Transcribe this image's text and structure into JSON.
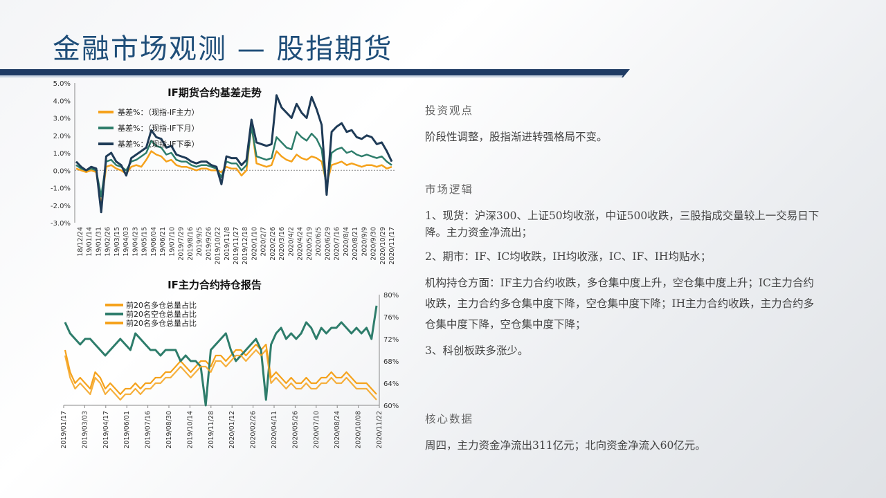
{
  "page": {
    "title": "金融市场观测 — 股指期货"
  },
  "text_panel": {
    "section1_head": "投资观点",
    "section1_body": "阶段性调整，股指渐进转强格局不变。",
    "section2_head": "市场逻辑",
    "section2_p1": "1、现货：沪深300、上证50均收涨，中证500收跌，三股指成交量较上一交易日下降。主力资金净流出；",
    "section2_p2": "2、期市：IF、IC均收跌，IH均收涨，IC、IF、IH均贴水；",
    "section2_p3": "机构持仓方面：IF主力合约收跌，多仓集中度上升，空仓集中度上升；IC主力合约收跌，主力合约多仓集中度下降，空仓集中度下降；IH主力合约收跌，主力合约多仓集中度下降，空仓集中度下降；",
    "section2_p4": "3、科创板跌多涨少。",
    "section3_head": "核心数据",
    "section3_body": "周四，主力资金净流出311亿元；北向资金净流入60亿元。"
  },
  "colors": {
    "orange": "#f5a21c",
    "green": "#2e7d6b",
    "navy": "#1f3b57",
    "title_blue": "#1f4e79"
  },
  "chart_data": [
    {
      "type": "line",
      "title": "IF期货合约基差走势",
      "y_unit": "%",
      "ylim": [
        -3.0,
        5.0
      ],
      "y_ticks": [
        "5.0%",
        "4.0%",
        "3.0%",
        "2.0%",
        "1.0%",
        "0.0%",
        "-1.0%",
        "-2.0%",
        "-3.0%"
      ],
      "x_tick_labels": [
        "18/12/24",
        "19/01/14",
        "19/01/31",
        "19/02/26",
        "19/03/15",
        "19/04/03",
        "19/04/23",
        "19/05/15",
        "19/06/04",
        "19/06/21",
        "19/07/10",
        "2019/7/29",
        "2019/8/16",
        "2019/9/5",
        "2019/9/26",
        "2019/10/22",
        "2019/11/8",
        "2019/11/27",
        "2019/12/18",
        "2020/1/10",
        "2020/2/7",
        "2020/2/26",
        "2020/3/16",
        "2020/4/2",
        "2020/4/24",
        "2020/5/19",
        "2020/6/5",
        "2020/6/29",
        "2020/7/16",
        "2020/8/4",
        "2020/8/21",
        "2020/9/9",
        "2020/9/30",
        "2020/10/29",
        "2020/11/17"
      ],
      "legend_placement": "top-left",
      "series": [
        {
          "name": "基差%：（现指-IF主力）",
          "color_key": "orange",
          "values": [
            0.1,
            0.0,
            -0.1,
            0.0,
            -0.1,
            -2.0,
            0.2,
            0.3,
            0.1,
            0.0,
            -0.2,
            0.2,
            0.3,
            0.2,
            0.6,
            1.1,
            0.9,
            0.8,
            0.5,
            0.6,
            0.3,
            0.2,
            0.2,
            0.1,
            0.0,
            0.1,
            0.1,
            0.0,
            0.0,
            -0.1,
            0.2,
            0.1,
            0.1,
            -0.3,
            0.0,
            2.6,
            0.4,
            0.3,
            0.2,
            0.3,
            1.1,
            0.8,
            0.6,
            0.5,
            0.9,
            0.7,
            0.6,
            0.8,
            0.7,
            0.5,
            -0.8,
            0.3,
            0.4,
            0.5,
            0.3,
            0.4,
            0.3,
            0.2,
            0.3,
            0.3,
            0.2,
            0.3,
            0.1,
            0.2
          ]
        },
        {
          "name": "基差%：（现指-IF下月）",
          "color_key": "green",
          "values": [
            0.3,
            0.1,
            0.0,
            0.1,
            0.0,
            -1.5,
            0.5,
            0.6,
            0.3,
            0.2,
            0.0,
            0.5,
            0.6,
            0.8,
            1.0,
            1.7,
            1.4,
            1.3,
            0.9,
            1.0,
            0.6,
            0.5,
            0.5,
            0.3,
            0.2,
            0.3,
            0.3,
            0.2,
            0.1,
            -0.4,
            0.5,
            0.4,
            0.4,
            0.0,
            0.3,
            2.5,
            0.8,
            0.7,
            0.6,
            0.7,
            1.9,
            1.6,
            1.3,
            1.2,
            2.2,
            1.9,
            1.7,
            2.1,
            1.8,
            1.2,
            -1.1,
            1.0,
            1.2,
            1.3,
            1.0,
            1.1,
            0.9,
            0.8,
            0.9,
            0.8,
            0.7,
            0.8,
            0.5,
            0.3
          ]
        },
        {
          "name": "基差%：（现指-IF下季）",
          "color_key": "navy",
          "values": [
            0.5,
            0.2,
            0.0,
            0.2,
            0.1,
            -2.4,
            0.8,
            1.0,
            0.5,
            0.3,
            -0.3,
            0.7,
            0.9,
            1.1,
            1.3,
            2.3,
            1.9,
            1.8,
            1.3,
            1.4,
            0.9,
            0.8,
            0.7,
            0.5,
            0.4,
            0.5,
            0.5,
            0.3,
            0.2,
            -0.8,
            0.8,
            0.7,
            0.7,
            0.3,
            0.6,
            2.9,
            1.6,
            1.5,
            1.4,
            1.5,
            4.3,
            3.6,
            3.3,
            3.0,
            3.8,
            3.3,
            3.0,
            4.2,
            3.5,
            2.6,
            -1.4,
            2.2,
            2.5,
            2.7,
            2.2,
            2.3,
            1.9,
            1.8,
            2.0,
            1.9,
            1.5,
            1.6,
            1.1,
            0.5
          ]
        }
      ]
    },
    {
      "type": "line",
      "title": "IF主力合约持仓报告",
      "y_unit": "%",
      "ylim": [
        60,
        80
      ],
      "y_ticks_right": [
        "80%",
        "76%",
        "72%",
        "68%",
        "64%",
        "60%"
      ],
      "x_tick_labels": [
        "2019/01/17",
        "2019/03/03",
        "2019/04/17",
        "2019/06/01",
        "2019/07/16",
        "2019/08/30",
        "2019/10/14",
        "2019/11/28",
        "2020/01/12",
        "2020/02/26",
        "2020/04/11",
        "2020/05/26",
        "2020/07/10",
        "2020/08/24",
        "2020/10/08",
        "2020/11/22"
      ],
      "legend_placement": "top-left",
      "series": [
        {
          "name": "前20名多仓总量占比",
          "color_key": "orange",
          "values": [
            70,
            66,
            64,
            65,
            64,
            63,
            66,
            65,
            63,
            64,
            63,
            62,
            63,
            63,
            64,
            63,
            64,
            64,
            65,
            65,
            66,
            66,
            67,
            68,
            67,
            66,
            67,
            68,
            68,
            67,
            69,
            69,
            68,
            69,
            70,
            70,
            69,
            70,
            71,
            70,
            71,
            65,
            66,
            65,
            64,
            65,
            64,
            64,
            65,
            64,
            64,
            65,
            65,
            66,
            65,
            65,
            66,
            65,
            64,
            64,
            64,
            63,
            62
          ]
        },
        {
          "name": "前20名空仓总量占比",
          "color_key": "green",
          "values": [
            75,
            73,
            72,
            71,
            72,
            72,
            71,
            70,
            69,
            70,
            71,
            72,
            71,
            70,
            73,
            72,
            71,
            70,
            70,
            69,
            70,
            70,
            70,
            68,
            69,
            68,
            68,
            67,
            60,
            70,
            71,
            72,
            73,
            70,
            68,
            69,
            70,
            71,
            72,
            70,
            61,
            71,
            73,
            74,
            72,
            73,
            72,
            73,
            75,
            74,
            72,
            74,
            73,
            74,
            74,
            75,
            74,
            73,
            74,
            73,
            74,
            72,
            78
          ]
        },
        {
          "name": "前20名多仓总量占比",
          "color_key": "orange",
          "values": [
            69,
            65,
            63,
            64,
            63,
            62,
            65,
            64,
            62,
            63,
            62,
            61,
            62,
            62,
            63,
            62,
            63,
            63,
            64,
            64,
            65,
            65,
            66,
            67,
            66,
            65,
            66,
            67,
            67,
            66,
            68,
            68,
            67,
            68,
            69,
            69,
            68,
            69,
            70,
            69,
            70,
            64,
            65,
            64,
            63,
            64,
            63,
            63,
            64,
            63,
            63,
            64,
            64,
            65,
            64,
            64,
            65,
            64,
            63,
            63,
            63,
            62,
            61
          ]
        }
      ]
    }
  ]
}
